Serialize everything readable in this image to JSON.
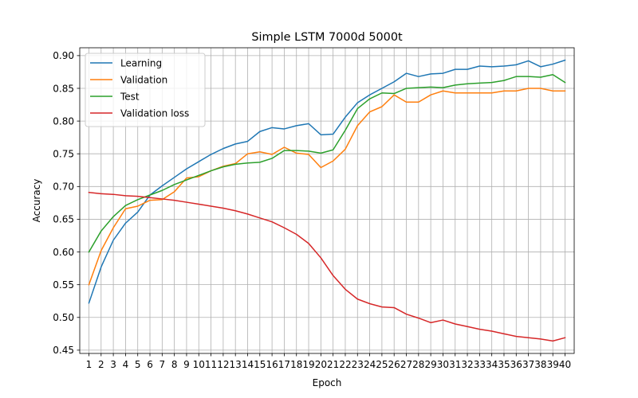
{
  "chart_data": {
    "type": "line",
    "title": "Simple LSTM 7000d 5000t",
    "xlabel": "Epoch",
    "ylabel": "Accuracy",
    "x": [
      1,
      2,
      3,
      4,
      5,
      6,
      7,
      8,
      9,
      10,
      11,
      12,
      13,
      14,
      15,
      16,
      17,
      18,
      19,
      20,
      21,
      22,
      23,
      24,
      25,
      26,
      27,
      28,
      29,
      30,
      31,
      32,
      33,
      34,
      35,
      36,
      37,
      38,
      39,
      40
    ],
    "xlim": [
      0.25,
      40.75
    ],
    "ylim": [
      0.445,
      0.912
    ],
    "yticks": [
      "0.45",
      "0.50",
      "0.55",
      "0.60",
      "0.65",
      "0.70",
      "0.75",
      "0.80",
      "0.85",
      "0.90"
    ],
    "grid": true,
    "legend_position": "upper-left",
    "series": [
      {
        "name": "Learning",
        "color": "#1f77b4",
        "values": [
          0.522,
          0.577,
          0.618,
          0.644,
          0.661,
          0.687,
          0.701,
          0.714,
          0.727,
          0.738,
          0.749,
          0.758,
          0.765,
          0.769,
          0.784,
          0.79,
          0.788,
          0.793,
          0.796,
          0.779,
          0.78,
          0.806,
          0.828,
          0.84,
          0.85,
          0.86,
          0.873,
          0.868,
          0.872,
          0.873,
          0.879,
          0.879,
          0.884,
          0.883,
          0.884,
          0.886,
          0.892,
          0.883,
          0.887,
          0.893
        ]
      },
      {
        "name": "Validation",
        "color": "#ff7f0e",
        "values": [
          0.55,
          0.602,
          0.637,
          0.666,
          0.67,
          0.679,
          0.68,
          0.692,
          0.713,
          0.715,
          0.724,
          0.731,
          0.735,
          0.75,
          0.753,
          0.749,
          0.76,
          0.751,
          0.749,
          0.729,
          0.739,
          0.757,
          0.793,
          0.814,
          0.822,
          0.84,
          0.829,
          0.829,
          0.84,
          0.846,
          0.843,
          0.843,
          0.843,
          0.843,
          0.846,
          0.846,
          0.85,
          0.85,
          0.846,
          0.846
        ]
      },
      {
        "name": "Test",
        "color": "#2ca02c",
        "values": [
          0.6,
          0.632,
          0.654,
          0.671,
          0.68,
          0.687,
          0.694,
          0.703,
          0.71,
          0.717,
          0.724,
          0.73,
          0.734,
          0.736,
          0.737,
          0.743,
          0.755,
          0.755,
          0.754,
          0.751,
          0.756,
          0.786,
          0.819,
          0.834,
          0.843,
          0.842,
          0.85,
          0.851,
          0.852,
          0.851,
          0.855,
          0.857,
          0.858,
          0.859,
          0.862,
          0.868,
          0.868,
          0.867,
          0.871,
          0.859
        ]
      },
      {
        "name": "Validation loss",
        "color": "#d62728",
        "values": [
          0.691,
          0.689,
          0.688,
          0.686,
          0.685,
          0.683,
          0.681,
          0.679,
          0.676,
          0.673,
          0.67,
          0.667,
          0.663,
          0.658,
          0.652,
          0.646,
          0.637,
          0.627,
          0.613,
          0.591,
          0.564,
          0.543,
          0.528,
          0.521,
          0.516,
          0.515,
          0.505,
          0.499,
          0.492,
          0.496,
          0.49,
          0.486,
          0.482,
          0.479,
          0.475,
          0.471,
          0.469,
          0.467,
          0.464,
          0.469
        ]
      }
    ]
  }
}
